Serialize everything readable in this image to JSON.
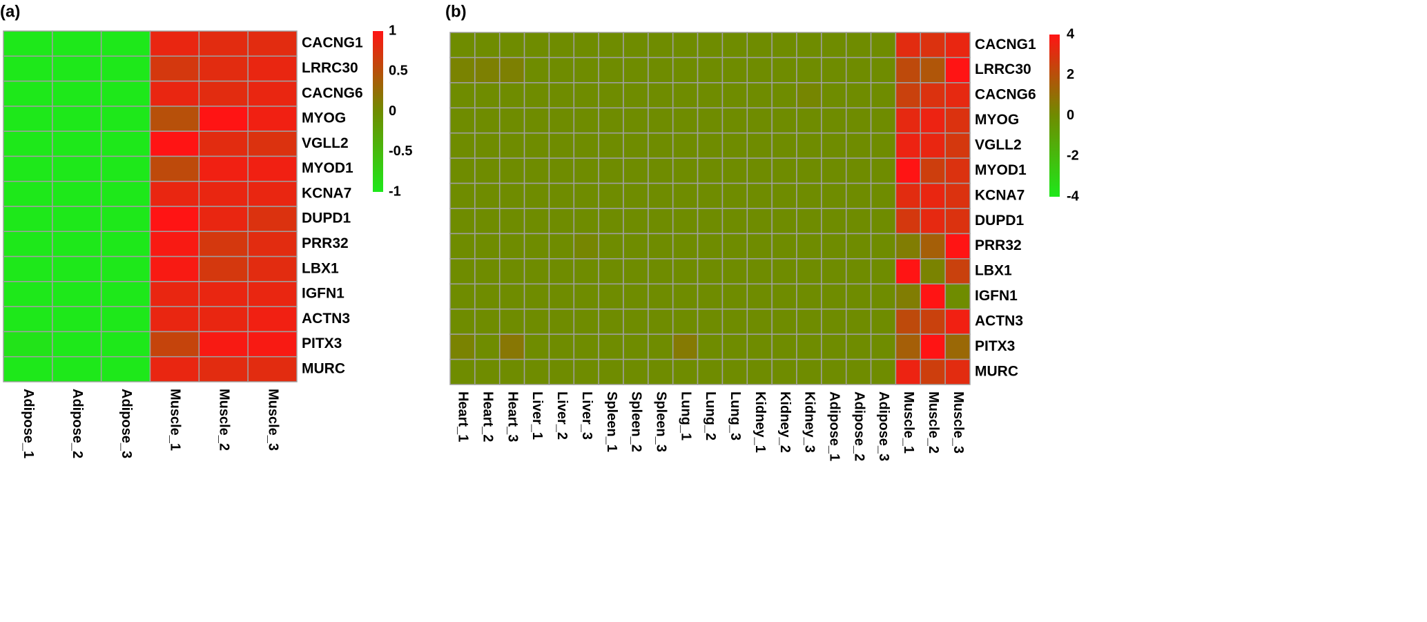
{
  "chart_data": [
    {
      "type": "heatmap",
      "panel_label": "(a)",
      "rows": [
        "CACNG1",
        "LRRC30",
        "CACNG6",
        "MYOG",
        "VGLL2",
        "MYOD1",
        "KCNA7",
        "DUPD1",
        "PRR32",
        "LBX1",
        "IGFN1",
        "ACTN3",
        "PITX3",
        "MURC"
      ],
      "columns": [
        "Adipose_1",
        "Adipose_2",
        "Adipose_3",
        "Muscle_1",
        "Muscle_2",
        "Muscle_3"
      ],
      "values": [
        [
          -1,
          -1,
          -1,
          0.85,
          0.8,
          0.8
        ],
        [
          -1,
          -1,
          -1,
          0.7,
          0.8,
          0.85
        ],
        [
          -1,
          -1,
          -1,
          0.85,
          0.8,
          0.85
        ],
        [
          -1,
          -1,
          -1,
          0.5,
          1,
          0.9
        ],
        [
          -1,
          -1,
          -1,
          1,
          0.8,
          0.75
        ],
        [
          -1,
          -1,
          -1,
          0.55,
          0.9,
          0.9
        ],
        [
          -1,
          -1,
          -1,
          0.85,
          0.85,
          0.85
        ],
        [
          -1,
          -1,
          -1,
          1,
          0.85,
          0.75
        ],
        [
          -1,
          -1,
          -1,
          0.95,
          0.7,
          0.8
        ],
        [
          -1,
          -1,
          -1,
          0.95,
          0.7,
          0.8
        ],
        [
          -1,
          -1,
          -1,
          0.85,
          0.85,
          0.85
        ],
        [
          -1,
          -1,
          -1,
          0.85,
          0.85,
          0.9
        ],
        [
          -0.95,
          -1,
          -1,
          0.6,
          0.95,
          0.95
        ],
        [
          -1,
          -1,
          -1,
          0.85,
          0.8,
          0.8
        ]
      ],
      "colors": [
        "#1ee81a",
        "#6f8c00",
        "#ff1414"
      ],
      "clim": [
        -1,
        1
      ],
      "cticks": [
        1,
        0.5,
        0,
        -0.5,
        -1
      ]
    },
    {
      "type": "heatmap",
      "panel_label": "(b)",
      "rows": [
        "CACNG1",
        "LRRC30",
        "CACNG6",
        "MYOG",
        "VGLL2",
        "MYOD1",
        "KCNA7",
        "DUPD1",
        "PRR32",
        "LBX1",
        "IGFN1",
        "ACTN3",
        "PITX3",
        "MURC"
      ],
      "columns": [
        "Heart_1",
        "Heart_2",
        "Heart_3",
        "Liver_1",
        "Liver_2",
        "Liver_3",
        "Spleen_1",
        "Spleen_2",
        "Spleen_3",
        "Lung_1",
        "Lung_2",
        "Lung_3",
        "Kidney_1",
        "Kidney_2",
        "Kidney_3",
        "Adipose_1",
        "Adipose_2",
        "Adipose_3",
        "Muscle_1",
        "Muscle_2",
        "Muscle_3"
      ],
      "values": [
        [
          0,
          0,
          0,
          0,
          0,
          0,
          0,
          0,
          0,
          0,
          0,
          0,
          0,
          0,
          0,
          0,
          0,
          0,
          3.2,
          3,
          3.4
        ],
        [
          0.3,
          0.4,
          0.4,
          0,
          0,
          0,
          0,
          0,
          0,
          0,
          0,
          0,
          0,
          0,
          0,
          0,
          0,
          0,
          2.2,
          1.8,
          4
        ],
        [
          0,
          0,
          0,
          0,
          0,
          0,
          0,
          0,
          0,
          0,
          0,
          0,
          0,
          0,
          0.2,
          0,
          0,
          0,
          2.5,
          3,
          3.3
        ],
        [
          0,
          0,
          0,
          0,
          0,
          0,
          0,
          0,
          0,
          0,
          0,
          0,
          0,
          0,
          0,
          0,
          0,
          0,
          3.3,
          3.5,
          3
        ],
        [
          0,
          0,
          0,
          0,
          0,
          0,
          0,
          0,
          0,
          0,
          0,
          0,
          0,
          0,
          0,
          0,
          0,
          0,
          3.5,
          3.4,
          2.8
        ],
        [
          0,
          0,
          0,
          0,
          0,
          0,
          0,
          0,
          0,
          0,
          0,
          0,
          0,
          0,
          0,
          0,
          0,
          0,
          4,
          2.6,
          3
        ],
        [
          0,
          0,
          0,
          0,
          0,
          0,
          0,
          0,
          0,
          0,
          0,
          0,
          0,
          0,
          0,
          0,
          0,
          0,
          3.2,
          3.4,
          3
        ],
        [
          0,
          0,
          0,
          0,
          0,
          0,
          0,
          0,
          0,
          0,
          0,
          0,
          0,
          0,
          0,
          0,
          0,
          0,
          2.8,
          3.3,
          3
        ],
        [
          0,
          0,
          0,
          0,
          0,
          0.2,
          0,
          0,
          0,
          0,
          0,
          0,
          0,
          0,
          0,
          0,
          0,
          0,
          0.5,
          1.5,
          4
        ],
        [
          0,
          0,
          0,
          0,
          0,
          0,
          0,
          0,
          0,
          0,
          0,
          0,
          0,
          0,
          0,
          0,
          0,
          0,
          4,
          0.3,
          2.5
        ],
        [
          0,
          0,
          0,
          0,
          0,
          0,
          0,
          0,
          0,
          0,
          0,
          0,
          0,
          0,
          0,
          0,
          0,
          0,
          0.5,
          4,
          0
        ],
        [
          0,
          0,
          0,
          0,
          0,
          0,
          0,
          0,
          0,
          0,
          0,
          0,
          0,
          0,
          0,
          0,
          0,
          0,
          2.2,
          2.5,
          3.6
        ],
        [
          0.3,
          0,
          0.7,
          0,
          0,
          0,
          0,
          0,
          0,
          0.6,
          0,
          0,
          0,
          0,
          0,
          0,
          0,
          0,
          1.5,
          4,
          1.2
        ],
        [
          0,
          0,
          0,
          0,
          0,
          0,
          0,
          0,
          0,
          0,
          0,
          0,
          0,
          0,
          0,
          0,
          0,
          0,
          3.5,
          2.6,
          3.2
        ]
      ],
      "colors": [
        "#1ee81a",
        "#6f8c00",
        "#ff1414"
      ],
      "clim": [
        -4,
        4
      ],
      "cticks": [
        4,
        2,
        0,
        -2,
        -4
      ]
    }
  ]
}
